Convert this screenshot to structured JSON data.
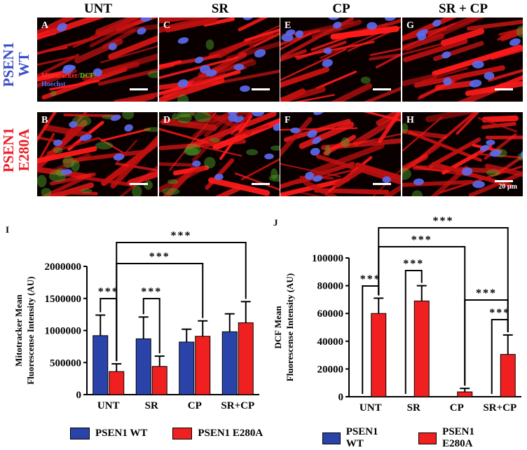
{
  "columns": [
    "UNT",
    "SR",
    "CP",
    "SR + CP"
  ],
  "rows": [
    {
      "line1": "PSEN1",
      "line2": "WT",
      "color": "#3a4fc4"
    },
    {
      "line1": "PSEN1",
      "line2": "E280A",
      "color": "#e8202a"
    }
  ],
  "panels": [
    {
      "label": "A",
      "green": 0.05
    },
    {
      "label": "C",
      "green": 0.05
    },
    {
      "label": "E",
      "green": 0.03
    },
    {
      "label": "G",
      "green": 0.03
    },
    {
      "label": "B",
      "green": 0.5
    },
    {
      "label": "D",
      "green": 0.45
    },
    {
      "label": "F",
      "green": 0.08
    },
    {
      "label": "H",
      "green": 0.2
    }
  ],
  "inset_legend": {
    "mito": "Mitotracker/",
    "dcf": "DCF/",
    "hoechst": "Hoechst"
  },
  "scale_text": "20 µm",
  "colors": {
    "wt": "#2a43a8",
    "mutant": "#f02020"
  },
  "chart_data": [
    {
      "type": "bar",
      "panel_letter": "I",
      "categories": [
        "UNT",
        "SR",
        "CP",
        "SR+CP"
      ],
      "series": [
        {
          "name": "PSEN1 WT",
          "values": [
            920000,
            870000,
            820000,
            980000
          ],
          "errors": [
            320000,
            340000,
            200000,
            280000
          ]
        },
        {
          "name": "PSEN1 E280A",
          "values": [
            360000,
            440000,
            910000,
            1120000
          ],
          "errors": [
            120000,
            160000,
            240000,
            330000
          ]
        }
      ],
      "ylabel": "Mitotracker Mean Fluorescense Intensity (AU)",
      "ylabel_line1": "Mitotracker Mean",
      "ylabel_line2": "Fluorescense Intensity (AU)",
      "ylim": [
        0,
        2000000
      ],
      "yticks": [
        "0",
        "500000",
        "1000000",
        "1500000",
        "2000000"
      ],
      "significance": "***"
    },
    {
      "type": "bar",
      "panel_letter": "J",
      "categories": [
        "UNT",
        "SR",
        "CP",
        "SR+CP"
      ],
      "series": [
        {
          "name": "PSEN1 WT",
          "values": [
            0,
            0,
            0,
            0
          ],
          "errors": [
            0,
            0,
            0,
            0
          ]
        },
        {
          "name": "PSEN1 E280A",
          "values": [
            60000,
            69000,
            3500,
            30500
          ],
          "errors": [
            11000,
            11000,
            2500,
            14000
          ]
        }
      ],
      "ylabel": "DCF Mean Fluorescense Intensity (AU)",
      "ylabel_line1": "DCF Mean",
      "ylabel_line2": "Fluorescense Intensity (AU)",
      "ylim": [
        0,
        100000
      ],
      "yticks": [
        "0",
        "20000",
        "40000",
        "60000",
        "80000",
        "100000"
      ],
      "significance": "***"
    }
  ],
  "legend": {
    "wt": "PSEN1 WT",
    "mutant": "PSEN1 E280A"
  }
}
